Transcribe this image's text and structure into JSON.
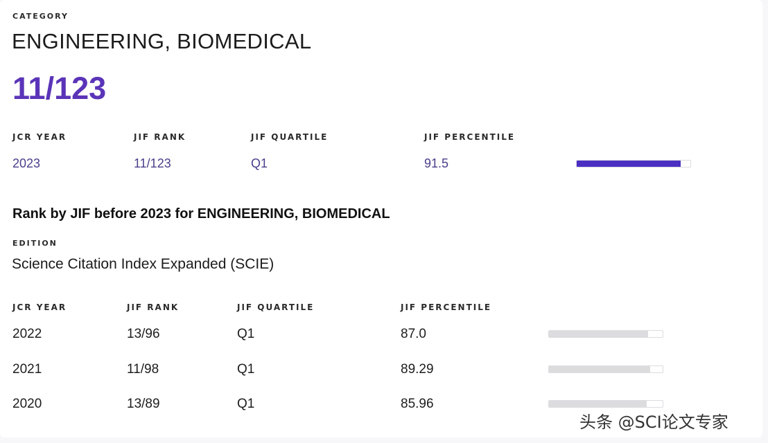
{
  "category": {
    "label": "CATEGORY",
    "name": "ENGINEERING, BIOMEDICAL",
    "rank": "11/123"
  },
  "current": {
    "headers": {
      "year": "JCR YEAR",
      "rank": "JIF RANK",
      "quartile": "JIF QUARTILE",
      "percentile": "JIF PERCENTILE"
    },
    "row": {
      "year": "2023",
      "rank": "11/123",
      "quartile": "Q1",
      "percentile": "91.5",
      "percentile_value": 91.5
    },
    "bar_color": "#4b2fc2"
  },
  "history": {
    "title": "Rank by JIF before 2023 for ENGINEERING, BIOMEDICAL",
    "edition_label": "EDITION",
    "edition_name": "Science Citation Index Expanded (SCIE)",
    "headers": {
      "year": "JCR YEAR",
      "rank": "JIF RANK",
      "quartile": "JIF QUARTILE",
      "percentile": "JIF PERCENTILE"
    },
    "rows": [
      {
        "year": "2022",
        "rank": "13/96",
        "quartile": "Q1",
        "percentile": "87.0",
        "percentile_value": 87.0
      },
      {
        "year": "2021",
        "rank": "11/98",
        "quartile": "Q1",
        "percentile": "89.29",
        "percentile_value": 89.29
      },
      {
        "year": "2020",
        "rank": "13/89",
        "quartile": "Q1",
        "percentile": "85.96",
        "percentile_value": 85.96
      }
    ],
    "bar_color": "#dcdcdf"
  },
  "watermark": "头条 @SCI论文专家"
}
